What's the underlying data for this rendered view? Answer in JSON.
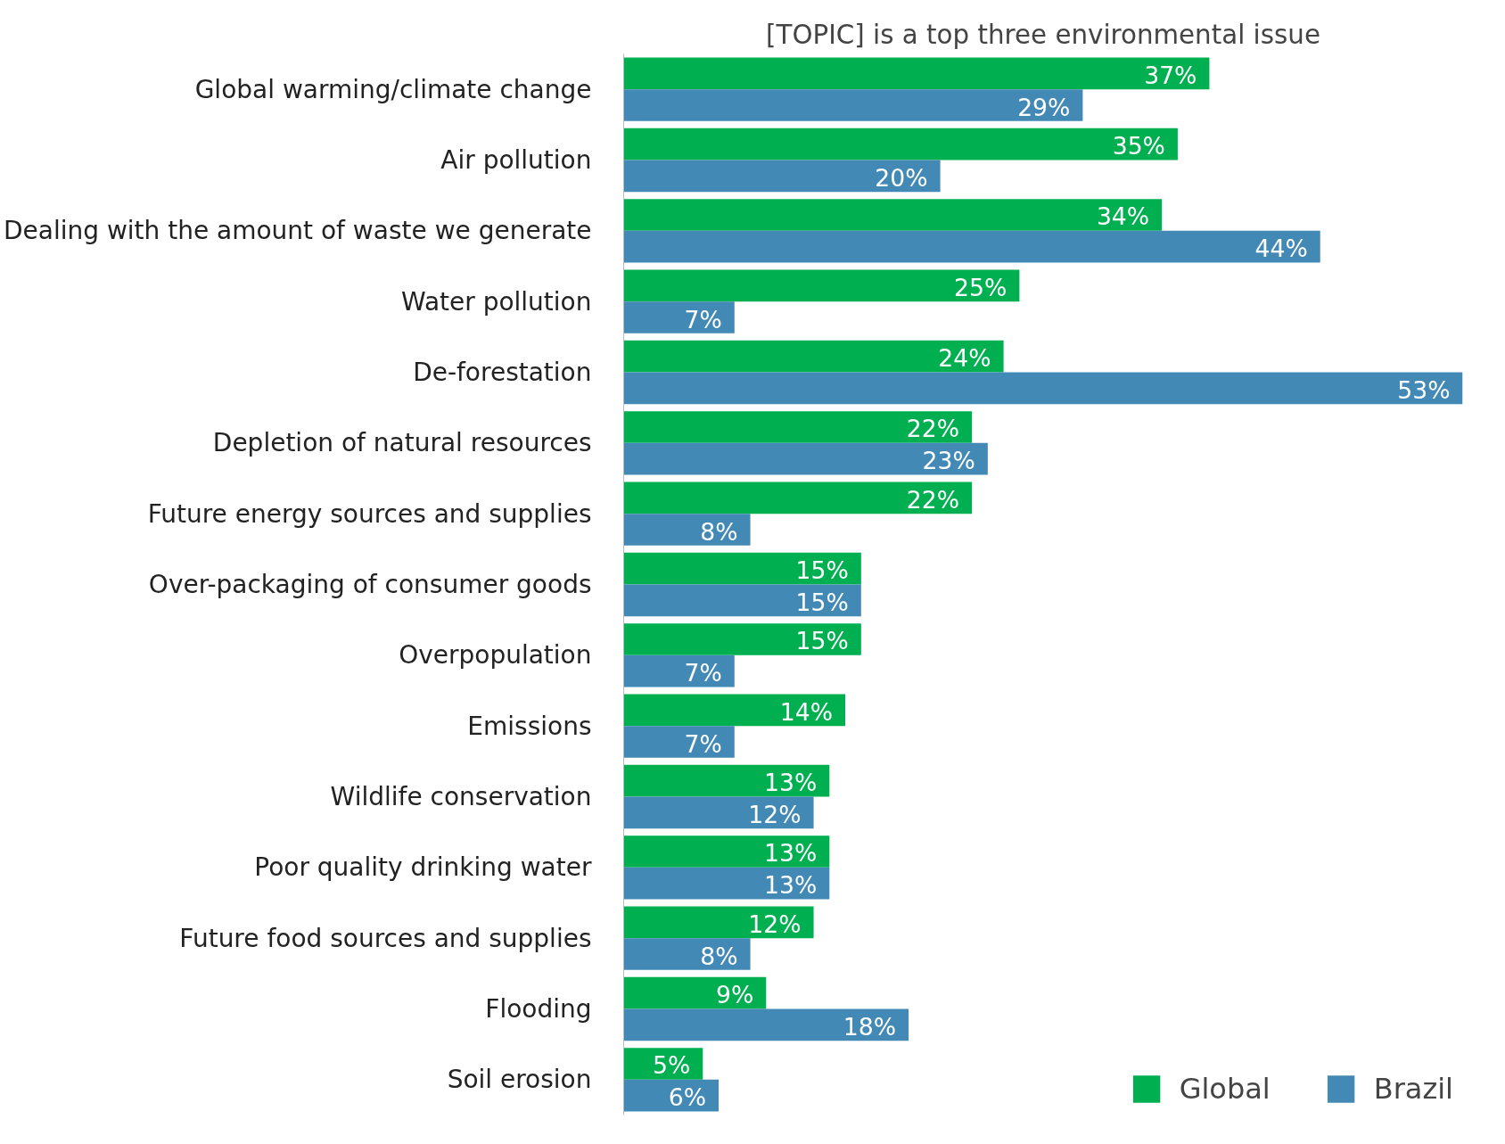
{
  "chart_data": {
    "type": "bar",
    "orientation": "horizontal",
    "title": "[TOPIC] is a top three environmental issue",
    "categories": [
      "Global warming/climate change",
      "Air pollution",
      "Dealing with the amount of waste we generate",
      "Water pollution",
      "De-forestation",
      "Depletion of natural resources",
      "Future energy sources and supplies",
      "Over-packaging of consumer goods",
      "Overpopulation",
      "Emissions",
      "Wildlife conservation",
      "Poor quality drinking water",
      "Future food sources and supplies",
      "Flooding",
      "Soil erosion"
    ],
    "series": [
      {
        "name": "Global",
        "color": "#00b050",
        "values": [
          37,
          35,
          34,
          25,
          24,
          22,
          22,
          15,
          15,
          14,
          13,
          13,
          12,
          9,
          5
        ],
        "value_labels": [
          "37%",
          "35%",
          "34%",
          "25%",
          "24%",
          "22%",
          "22%",
          "15%",
          "15%",
          "14%",
          "13%",
          "13%",
          "12%",
          "9%",
          "5%"
        ]
      },
      {
        "name": "Brazil",
        "color": "#4389b5",
        "values": [
          29,
          20,
          44,
          7,
          53,
          23,
          8,
          15,
          7,
          7,
          12,
          13,
          8,
          18,
          6
        ],
        "value_labels": [
          "29%",
          "20%",
          "44%",
          "7%",
          "53%",
          "23%",
          "8%",
          "15%",
          "7%",
          "7%",
          "12%",
          "13%",
          "8%",
          "18%",
          "6%"
        ]
      }
    ],
    "legend": "bottom right",
    "grid": false
  }
}
